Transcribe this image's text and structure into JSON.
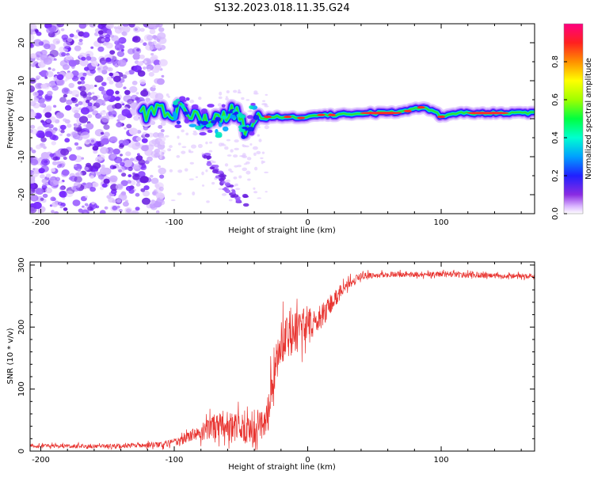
{
  "chart_data": [
    {
      "type": "heatmap",
      "title": "S132.2023.018.11.35.G24",
      "xlabel": "Height of straight line (km)",
      "ylabel": "Frequency (Hz)",
      "xlim": [
        -208,
        170
      ],
      "ylim": [
        -25,
        25
      ],
      "xticks": [
        -200,
        -100,
        0,
        100
      ],
      "xtick_labels": [
        "-200",
        "-100",
        "0",
        "100"
      ],
      "yticks": [
        -20,
        -10,
        0,
        10,
        20
      ],
      "ytick_labels": [
        "-20",
        "-10",
        "0",
        "10",
        "20"
      ],
      "colorbar": {
        "label": "Normalized spectral amplitude",
        "range": [
          0,
          1
        ],
        "ticks": [
          0.0,
          0.2,
          0.4,
          0.6,
          0.8
        ],
        "tick_labels": [
          "0.0",
          "0.2",
          "0.4",
          "0.6",
          "0.8"
        ]
      },
      "ridge": {
        "description_points_x": [
          -125,
          -110,
          -95,
          -80,
          -65,
          -55,
          -45,
          -40,
          -35,
          -25,
          -15,
          -5,
          5,
          20,
          40,
          60,
          75,
          85,
          95,
          100,
          115,
          140,
          170
        ],
        "description_points_freq": [
          2,
          1.5,
          2,
          0,
          -1,
          2,
          -3,
          2,
          0,
          0.5,
          0.5,
          0,
          1,
          1,
          1.5,
          1.5,
          2,
          3,
          2,
          0.5,
          1.5,
          1.5,
          1.5
        ]
      },
      "dispersed_branch": {
        "x": [
          -80,
          -70,
          -60,
          -50,
          -45
        ],
        "freq": [
          -8,
          -13,
          -18,
          -21,
          -22
        ]
      }
    },
    {
      "type": "line",
      "xlabel": "Height of straight line (km)",
      "ylabel": "SNR (10 * v/v)",
      "xlim": [
        -208,
        170
      ],
      "ylim": [
        0,
        305
      ],
      "xticks": [
        -200,
        -100,
        0,
        100
      ],
      "xtick_labels": [
        "-200",
        "-100",
        "0",
        "100"
      ],
      "yticks": [
        0,
        100,
        200,
        300
      ],
      "ytick_labels": [
        "0",
        "100",
        "200",
        "300"
      ],
      "series": [
        {
          "name": "SNR",
          "color": "#e8332f",
          "envelope_x": [
            -208,
            -150,
            -110,
            -100,
            -90,
            -80,
            -70,
            -60,
            -50,
            -40,
            -30,
            -25,
            -20,
            -10,
            0,
            10,
            20,
            30,
            40,
            60,
            100,
            140,
            170
          ],
          "envelope_mean": [
            8,
            8,
            10,
            14,
            22,
            30,
            40,
            45,
            35,
            30,
            55,
            140,
            175,
            190,
            200,
            215,
            245,
            270,
            282,
            285,
            285,
            283,
            282
          ],
          "envelope_amp": [
            6,
            6,
            8,
            12,
            15,
            25,
            35,
            40,
            45,
            40,
            60,
            90,
            70,
            60,
            60,
            40,
            25,
            15,
            10,
            8,
            8,
            8,
            8
          ]
        }
      ]
    }
  ]
}
